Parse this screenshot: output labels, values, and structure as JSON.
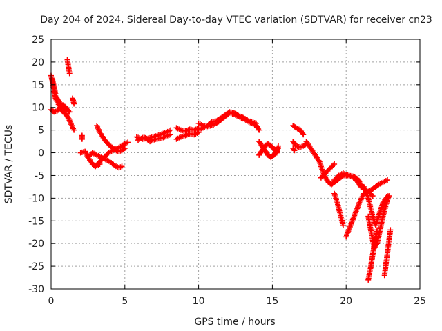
{
  "chart_data": {
    "type": "scatter",
    "title": "Day 204 of 2024, Sidereal Day-to-day VTEC variation (SDTVAR) for receiver cn23",
    "xlabel": "GPS time / hours",
    "ylabel": "SDTVAR / TECUs",
    "xlim": [
      0,
      25
    ],
    "ylim": [
      -30,
      25
    ],
    "xticks": [
      0,
      5,
      10,
      15,
      20,
      25
    ],
    "yticks": [
      -30,
      -25,
      -20,
      -15,
      -10,
      -5,
      0,
      5,
      10,
      15,
      20,
      25
    ],
    "grid": true,
    "marker": "+",
    "color": "#ff0000",
    "series": [
      {
        "name": "t1",
        "x": [
          0.0,
          0.1,
          0.2,
          0.3,
          0.45,
          0.6,
          0.8,
          1.0,
          1.2,
          1.4,
          1.55
        ],
        "y": [
          17.0,
          15.5,
          13.5,
          12.0,
          11.0,
          10.0,
          9.0,
          8.5,
          7.5,
          6.0,
          5.0
        ]
      },
      {
        "name": "t2",
        "x": [
          0.0,
          0.2,
          0.4,
          0.6,
          0.8,
          1.0,
          1.2
        ],
        "y": [
          9.5,
          9.0,
          9.2,
          9.8,
          10.5,
          10.0,
          9.0
        ]
      },
      {
        "name": "t3",
        "x": [
          0.3,
          0.5,
          0.7,
          0.9,
          1.1,
          1.25
        ],
        "y": [
          12.5,
          11.5,
          10.5,
          10.0,
          9.5,
          9.0
        ]
      },
      {
        "name": "t4",
        "x": [
          0.1,
          0.2,
          0.3
        ],
        "y": [
          16.0,
          14.5,
          13.0
        ]
      },
      {
        "name": "t5",
        "x": [
          1.1,
          1.15,
          1.2,
          1.25
        ],
        "y": [
          20.5,
          19.5,
          18.5,
          17.5
        ]
      },
      {
        "name": "t6",
        "x": [
          1.45,
          1.5,
          1.55
        ],
        "y": [
          12.0,
          11.5,
          10.8
        ]
      },
      {
        "name": "t7",
        "x": [
          2.1,
          2.1
        ],
        "y": [
          3.0,
          3.8
        ]
      },
      {
        "name": "t8",
        "x": [
          2.0,
          2.3,
          2.5,
          2.8,
          3.0,
          3.3
        ],
        "y": [
          0.0,
          0.3,
          -1.0,
          -2.5,
          -3.0,
          -2.5
        ]
      },
      {
        "name": "t9",
        "x": [
          2.5,
          2.8,
          3.1,
          3.4,
          3.7,
          4.0,
          4.3,
          4.6,
          4.8
        ],
        "y": [
          -1.0,
          0.0,
          -0.5,
          -1.0,
          -1.5,
          -2.0,
          -2.8,
          -3.3,
          -3.0
        ]
      },
      {
        "name": "t10",
        "x": [
          3.1,
          3.3,
          3.6,
          3.9,
          4.2,
          4.5,
          4.8,
          5.0
        ],
        "y": [
          6.0,
          4.5,
          3.0,
          1.8,
          1.0,
          0.3,
          0.5,
          1.0
        ]
      },
      {
        "name": "t11",
        "x": [
          3.0,
          3.3,
          3.6,
          3.9,
          4.2,
          4.5,
          4.8,
          5.0,
          5.2
        ],
        "y": [
          -3.0,
          -2.0,
          -1.0,
          0.0,
          0.5,
          1.0,
          1.5,
          2.0,
          2.3
        ]
      },
      {
        "name": "t12",
        "x": [
          5.8,
          6.2,
          6.6,
          7.0,
          7.4,
          7.8,
          8.1
        ],
        "y": [
          3.5,
          3.0,
          3.2,
          3.6,
          4.0,
          4.5,
          5.0
        ]
      },
      {
        "name": "t13",
        "x": [
          5.9,
          6.3,
          6.7,
          7.1,
          7.5,
          7.9,
          8.1
        ],
        "y": [
          2.8,
          3.5,
          2.5,
          3.0,
          3.2,
          3.8,
          4.0
        ]
      },
      {
        "name": "t14",
        "x": [
          8.5,
          8.8,
          9.1,
          9.4,
          9.7,
          10.0
        ],
        "y": [
          5.5,
          5.0,
          4.8,
          5.2,
          5.0,
          5.5
        ]
      },
      {
        "name": "t15",
        "x": [
          8.5,
          8.8,
          9.1,
          9.4,
          9.7,
          10.0
        ],
        "y": [
          3.0,
          3.5,
          3.8,
          4.2,
          4.0,
          4.5
        ]
      },
      {
        "name": "t16",
        "x": [
          10.0,
          10.3,
          10.6,
          10.9,
          11.2,
          11.5,
          11.8,
          12.1,
          12.4,
          12.7,
          13.0,
          13.3,
          13.6,
          13.9,
          14.1
        ],
        "y": [
          6.5,
          6.0,
          5.8,
          6.0,
          6.5,
          7.2,
          8.0,
          8.8,
          8.5,
          8.0,
          7.5,
          7.0,
          6.5,
          6.0,
          5.0
        ]
      },
      {
        "name": "t17",
        "x": [
          10.0,
          10.3,
          10.6,
          10.9,
          11.2,
          11.5,
          11.8,
          12.1,
          12.4,
          12.7,
          13.0,
          13.3,
          13.6,
          13.9
        ],
        "y": [
          5.0,
          5.5,
          6.0,
          6.8,
          7.0,
          7.6,
          8.3,
          9.0,
          8.8,
          8.2,
          7.8,
          7.2,
          6.8,
          6.5
        ]
      },
      {
        "name": "t18",
        "x": [
          14.1,
          14.3,
          14.5,
          14.7,
          14.9,
          15.1,
          15.3,
          15.4
        ],
        "y": [
          2.5,
          1.5,
          0.5,
          -0.5,
          -1.0,
          -0.5,
          0.5,
          1.0
        ]
      },
      {
        "name": "t19",
        "x": [
          14.1,
          14.3,
          14.5,
          14.7,
          14.9,
          15.1,
          15.3,
          15.4
        ],
        "y": [
          -0.5,
          0.5,
          1.5,
          2.0,
          1.5,
          1.0,
          0.0,
          1.5
        ]
      },
      {
        "name": "t20",
        "x": [
          16.4,
          16.6,
          16.9,
          17.1
        ],
        "y": [
          6.0,
          5.5,
          5.0,
          4.0
        ]
      },
      {
        "name": "t21",
        "x": [
          16.4,
          16.6,
          16.9,
          17.1,
          17.3
        ],
        "y": [
          2.5,
          1.5,
          1.2,
          1.5,
          2.0
        ]
      },
      {
        "name": "t22",
        "x": [
          16.4,
          16.5
        ],
        "y": [
          1.0,
          0.5
        ]
      },
      {
        "name": "t23",
        "x": [
          17.3,
          17.6,
          17.9,
          18.2,
          18.4,
          18.6,
          18.8,
          19.0,
          19.2,
          19.4,
          19.6,
          19.8,
          20.0,
          20.2,
          20.5,
          20.8,
          21.0,
          21.2,
          21.5,
          21.8,
          22.0,
          22.2,
          22.5,
          22.8
        ],
        "y": [
          2.5,
          1.0,
          -0.5,
          -2.0,
          -4.0,
          -5.5,
          -6.5,
          -7.0,
          -6.5,
          -6.0,
          -5.5,
          -5.0,
          -5.0,
          -5.0,
          -5.2,
          -5.8,
          -7.0,
          -8.0,
          -8.5,
          -8.0,
          -7.5,
          -7.0,
          -6.5,
          -6.0
        ]
      },
      {
        "name": "t24",
        "x": [
          18.3,
          18.6,
          18.9,
          19.2
        ],
        "y": [
          -5.5,
          -4.5,
          -3.5,
          -2.5
        ]
      },
      {
        "name": "t25",
        "x": [
          19.2,
          19.5,
          19.8,
          20.0,
          20.2,
          20.5,
          20.8,
          21.0
        ],
        "y": [
          -6.0,
          -5.0,
          -4.5,
          -4.8,
          -5.0,
          -5.5,
          -6.5,
          -7.5
        ]
      },
      {
        "name": "t26",
        "x": [
          19.2,
          19.4,
          19.6,
          19.8
        ],
        "y": [
          -9.0,
          -11.0,
          -13.5,
          -16.0
        ]
      },
      {
        "name": "t27",
        "x": [
          20.0,
          20.3,
          20.6,
          20.9,
          21.2,
          21.5,
          21.8
        ],
        "y": [
          -18.5,
          -16.0,
          -13.5,
          -11.0,
          -9.0,
          -8.5,
          -9.5
        ]
      },
      {
        "name": "t28",
        "x": [
          21.2,
          21.5,
          21.8,
          22.0,
          22.2,
          22.5,
          22.8
        ],
        "y": [
          -7.5,
          -10.0,
          -14.0,
          -16.0,
          -14.0,
          -11.0,
          -9.5
        ]
      },
      {
        "name": "t29",
        "x": [
          21.5,
          21.7,
          21.9,
          22.1,
          22.3,
          22.5,
          22.7,
          22.9
        ],
        "y": [
          -14.0,
          -17.5,
          -21.0,
          -20.0,
          -17.0,
          -14.0,
          -11.5,
          -9.5
        ]
      },
      {
        "name": "t30",
        "x": [
          21.5,
          21.65,
          21.8,
          21.95,
          22.1
        ],
        "y": [
          -28.0,
          -25.5,
          -22.5,
          -19.5,
          -17.0
        ]
      },
      {
        "name": "t31",
        "x": [
          22.6,
          22.7,
          22.8,
          22.9,
          23.0
        ],
        "y": [
          -27.0,
          -24.5,
          -22.0,
          -19.5,
          -17.0
        ]
      }
    ]
  }
}
